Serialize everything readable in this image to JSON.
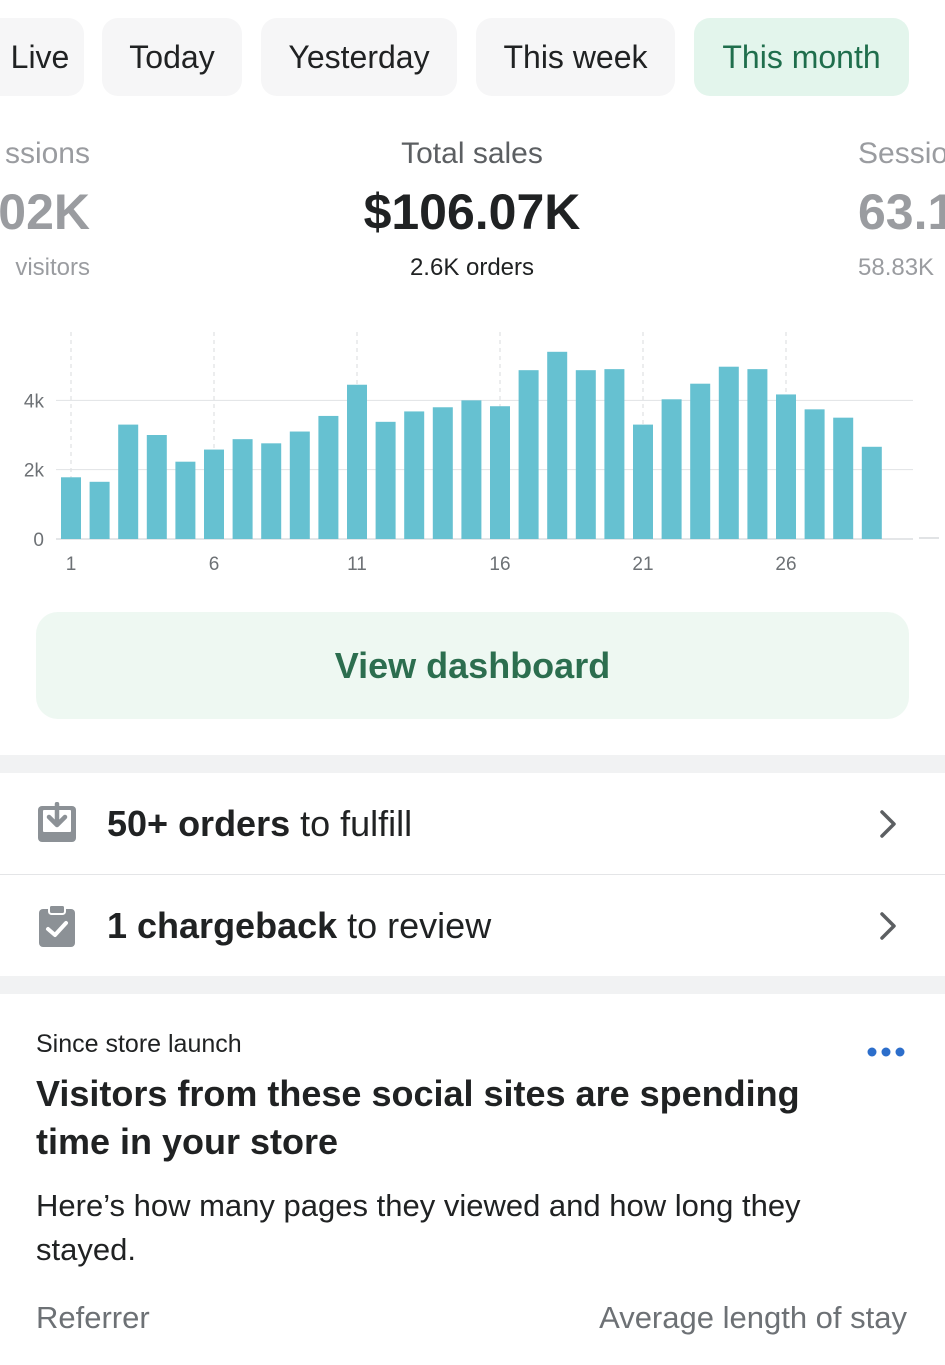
{
  "tabs": [
    {
      "label": "Live",
      "active": false
    },
    {
      "label": "Today",
      "active": false
    },
    {
      "label": "Yesterday",
      "active": false
    },
    {
      "label": "This week",
      "active": false
    },
    {
      "label": "This month",
      "active": true
    }
  ],
  "metrics": {
    "left": {
      "label": "ssions",
      "value": "02K",
      "sub": "visitors"
    },
    "center": {
      "label": "Total sales",
      "value": "$106.07K",
      "sub": "2.6K orders"
    },
    "right": {
      "label": "Sessio",
      "value": "63.1",
      "sub": "58.83K"
    }
  },
  "chart_data": {
    "type": "bar",
    "title": "",
    "xlabel": "",
    "ylabel": "",
    "categories": [
      1,
      2,
      3,
      4,
      5,
      6,
      7,
      8,
      9,
      10,
      11,
      12,
      13,
      14,
      15,
      16,
      17,
      18,
      19,
      20,
      21,
      22,
      23,
      24,
      25,
      26,
      27,
      28,
      29,
      30,
      31
    ],
    "x_tick_labels": [
      "1",
      "6",
      "11",
      "16",
      "21",
      "26"
    ],
    "y_tick_labels": [
      "0",
      "2k",
      "4k"
    ],
    "values": [
      1780,
      1650,
      3300,
      3000,
      2230,
      2580,
      2880,
      2760,
      3100,
      3550,
      4450,
      3380,
      3680,
      3800,
      4000,
      3830,
      4870,
      5400,
      4870,
      4900,
      3300,
      4030,
      4480,
      4970,
      4900,
      4170,
      3740,
      3500,
      2660,
      0,
      60
    ],
    "ylim": [
      0,
      6000
    ],
    "grid": true,
    "color": "#66c1d1"
  },
  "view_dashboard": {
    "label": "View dashboard"
  },
  "tasks": [
    {
      "bold": "50+ orders",
      "rest": " to fulfill",
      "icon": "download-tray-icon"
    },
    {
      "bold": "1 chargeback",
      "rest": " to review",
      "icon": "clipboard-check-icon"
    }
  ],
  "insight": {
    "eyebrow": "Since store launch",
    "headline": "Visitors from these social sites are spending time in your store",
    "description": "Here’s how many pages they viewed and how long they stayed.",
    "col_left": "Referrer",
    "col_right": "Average length of stay"
  },
  "colors": {
    "accent_green": "#2c6e4f",
    "active_tab_bg": "#e3f5ec",
    "bar": "#66c1d1",
    "more_icon": "#2c6ecb"
  }
}
